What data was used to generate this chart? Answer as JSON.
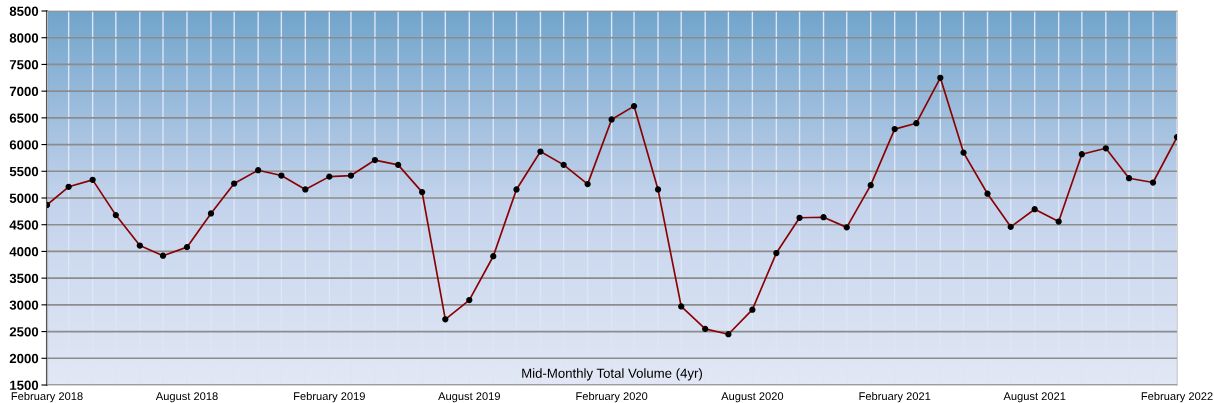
{
  "chart_data": {
    "type": "line",
    "title": "Mid-Monthly Total Volume (4yr)",
    "x": [
      "2018-02",
      "2018-03",
      "2018-04",
      "2018-05",
      "2018-06",
      "2018-07",
      "2018-08",
      "2018-09",
      "2018-10",
      "2018-11",
      "2018-12",
      "2019-01",
      "2019-02",
      "2019-03",
      "2019-04",
      "2019-05",
      "2019-06",
      "2019-07",
      "2019-08",
      "2019-09",
      "2019-10",
      "2019-11",
      "2019-12",
      "2020-01",
      "2020-02",
      "2020-03",
      "2020-04",
      "2020-05",
      "2020-06",
      "2020-07",
      "2020-08",
      "2020-09",
      "2020-10",
      "2020-11",
      "2020-12",
      "2021-01",
      "2021-02",
      "2021-03",
      "2021-04",
      "2021-05",
      "2021-06",
      "2021-07",
      "2021-08",
      "2021-09",
      "2021-10",
      "2021-11",
      "2021-12",
      "2022-01",
      "2022-02"
    ],
    "series": [
      {
        "color": "#8b0000",
        "values": [
          4870,
          5210,
          5340,
          4680,
          4110,
          3920,
          4080,
          4710,
          5270,
          5520,
          5420,
          5160,
          5400,
          5420,
          5710,
          5620,
          5110,
          2730,
          3090,
          3910,
          5160,
          5870,
          5620,
          5260,
          6470,
          6720,
          5160,
          2970,
          2550,
          2450,
          2910,
          3970,
          4630,
          4640,
          4450,
          5240,
          6290,
          6400,
          7250,
          5850,
          5080,
          4460,
          4790,
          4560,
          5820,
          5930,
          5370,
          5290,
          6140
        ]
      }
    ],
    "xlim": [
      "2018-02",
      "2022-02"
    ],
    "xticks": [
      {
        "value": "2018-02",
        "label": "February 2018"
      },
      {
        "value": "2018-08",
        "label": "August 2018"
      },
      {
        "value": "2019-02",
        "label": "February 2019"
      },
      {
        "value": "2019-08",
        "label": "August 2019"
      },
      {
        "value": "2020-02",
        "label": "February 2020"
      },
      {
        "value": "2020-08",
        "label": "August 2020"
      },
      {
        "value": "2021-02",
        "label": "February 2021"
      },
      {
        "value": "2021-08",
        "label": "August 2021"
      },
      {
        "value": "2022-02",
        "label": "February 2022"
      }
    ],
    "ylim": [
      1500,
      8500
    ],
    "yticks": [
      1500,
      2000,
      2500,
      3000,
      3500,
      4000,
      4500,
      5000,
      5500,
      6000,
      6500,
      7000,
      7500,
      8000,
      8500
    ],
    "grid": true,
    "marker": "circle",
    "line_style": "solid",
    "legend": false
  }
}
